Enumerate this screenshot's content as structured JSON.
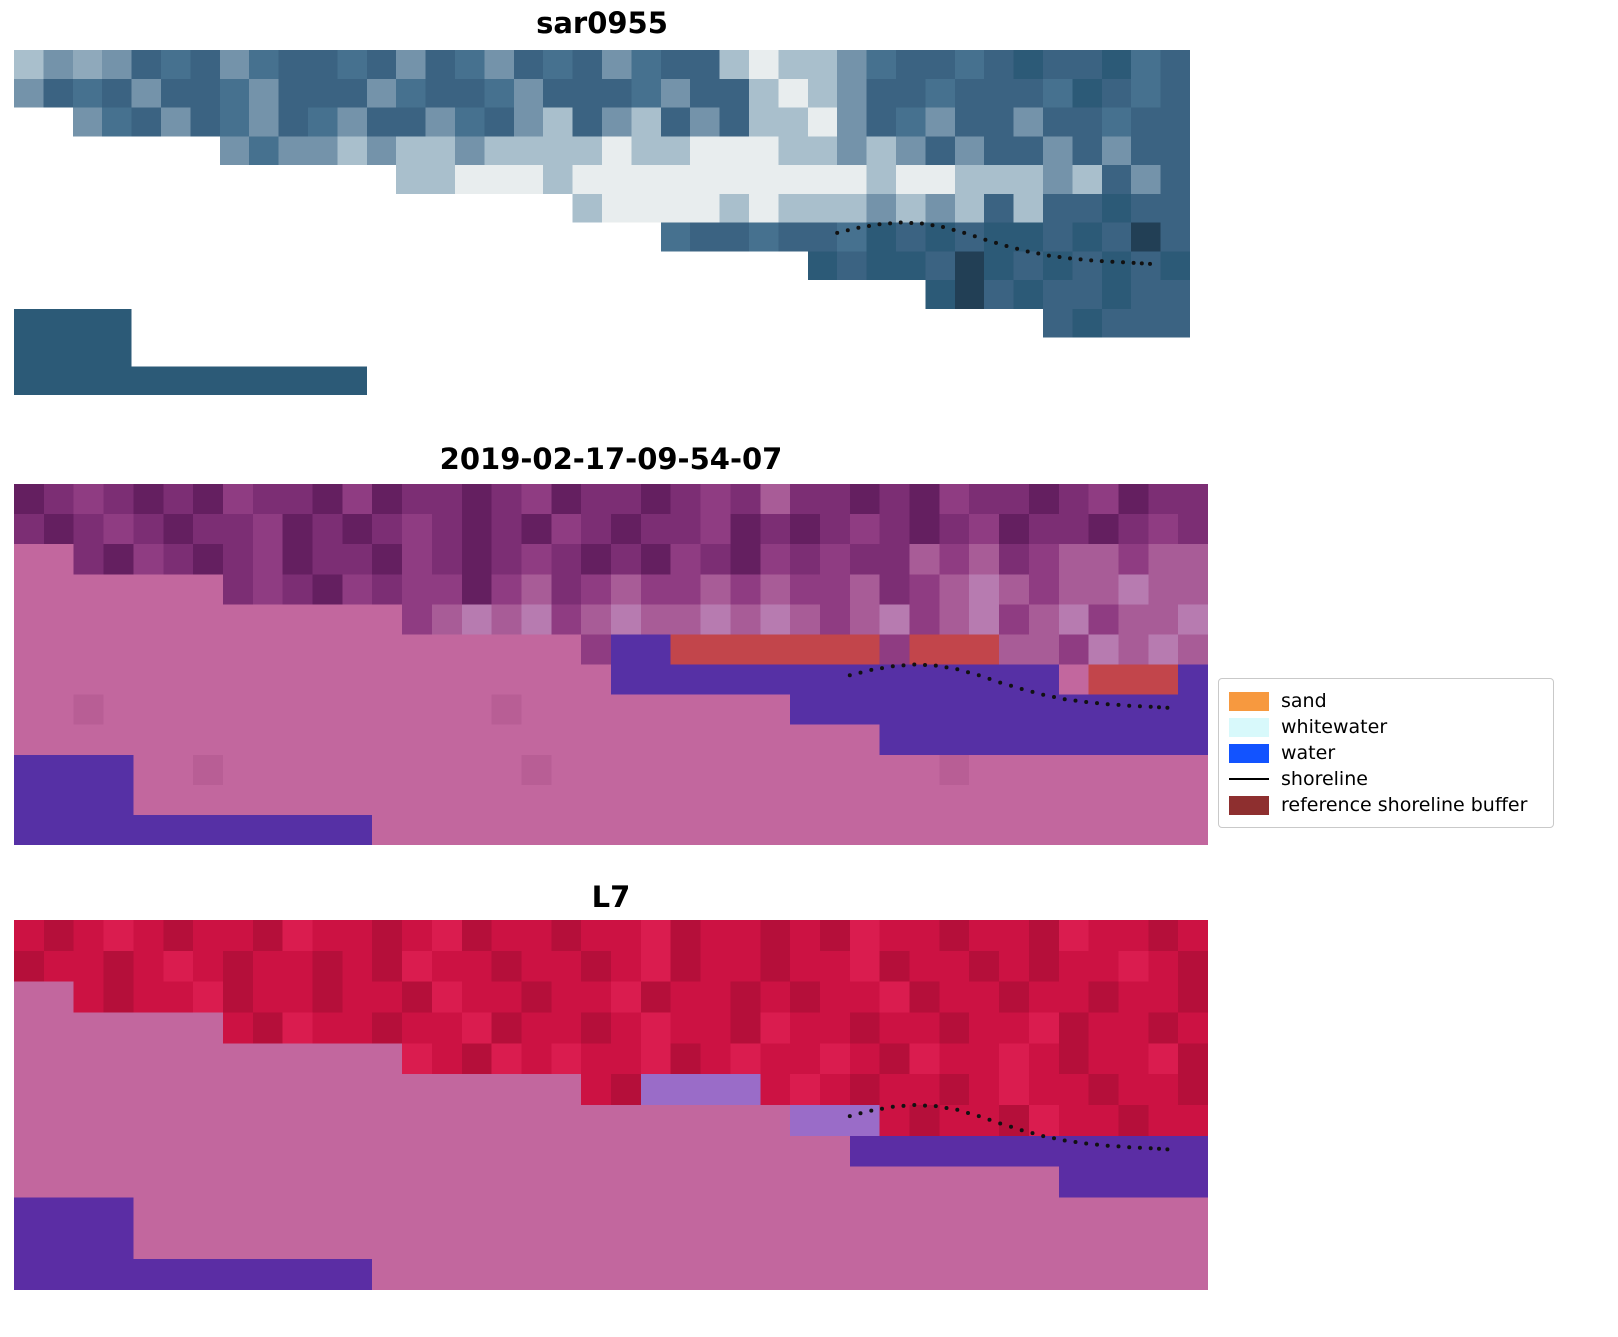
{
  "figure": {
    "background": "#ffffff"
  },
  "panels": [
    {
      "id": "sar0955",
      "title": "sar0955",
      "shoreline": true,
      "grid": {
        "cols": 40,
        "rows": 12,
        "palette": {
          ".": "#ffffff",
          "a": "#46718f",
          "b": "#3b6382",
          "c": "#7493aa",
          "d": "#a9bfcc",
          "e": "#e8edee",
          "f": "#2c5a77",
          "g": "#8fa9bb",
          "h": "#223f55"
        },
        "cells": [
          "dcgcbabcabbabcbacbabcabbdeddcabbabfbbfab",
          "cbabcbbacbbbcabbacbbbacbbdedcbbabbbafbab",
          "..cabcbacbacbbcabcdbcdbcbddecbacbbcbbabb",
          ".......caccdcddcddddeddeeeddcdcbcbbcbcbb",
          ".............ddeeedeeeeeeeeeedeedddcdbcb",
          "...................deeeededddcdcdbdbbfbb",
          "......................abbabbafbfbffbfbhb",
          "...........................fbffbhfbfbfbf",
          "...............................fhbfbbfbb",
          "ffff...............................bfbbb",
          "ffff....................................",
          "ffffffffffff............................"
        ]
      }
    },
    {
      "id": "classified",
      "title": "2019-02-17-09-54-07",
      "shoreline": true,
      "grid": {
        "cols": 40,
        "rows": 12,
        "palette": {
          ".": "#ffffff",
          "p": "#c2679e",
          "P": "#b85e95",
          "m": "#7c2e74",
          "n": "#641f60",
          "o": "#8f3c82",
          "q": "#a85c97",
          "v": "#b77bb0",
          "r": "#c2454b",
          "w": "#5630a5"
        },
        "cells": [
          "nmomnmnommnonmmnmonmmnmomqmmnmnommnmonmm",
          "mnmomnmmonmnmomnmnomnmmonmnmomnmonmmnmom",
          "ppmnomnmonmmnomnmomnmnomnomommqoqmoqqoqq",
          "pppppppmomnomoonoqmoqooqoqooqmoqvqoqqvqq",
          "pppppppppppppoqvqvoqvqqvqvqoqvoqvoqvoqqv",
          "pppppppppppppppppppowwrrrrrrrorrrqqovqvq",
          "ppppppppppppppppppppwwwwwwwwwwwwwwwprrrw",
          "ppPpppppppppppppPpppppppppwwwwwwwwwwwwww",
          "pppppppppppppppppppppppppppppwwwwwwwwwww",
          "wwwwppPppppppppppPpppppppppppppPpppppppp",
          "wwwwpppppppppppppppppppppppppppppppppppp",
          "wwwwwwwwwwwwpppppppppppppppppppppppppppp"
        ]
      }
    },
    {
      "id": "L7",
      "title": "L7",
      "shoreline": true,
      "grid": {
        "cols": 40,
        "rows": 12,
        "palette": {
          ".": "#ffffff",
          "p": "#c2679e",
          "P": "#b85e95",
          "R": "#cc1243",
          "S": "#b50f3a",
          "T": "#da1c4f",
          "u": "#9a6cc8",
          "w": "#5b2da4"
        },
        "cells": [
          "RSRTRSRRSTRRSRTSRRSRRTSRRSRSTRRSRRSTRRSR",
          "SRRSRTRSRRSRSTRRSRRSRTSRRSRRTSRRSRSRRTRS",
          "ppRSRRTSRRSRRSTRRSRRTSRRSRSRRTSRRSRRSRRS",
          "pppppppRSTRRSRRTSRRSRTRRSTRRSRRSRRTSRRSR",
          "pppppppppppppTRSTRTRRTSRTRRTRSTRRTRSRRTS",
          "pppppppppppppppppppRSuuuuRTRSRRSRTRRSRRS",
          "ppppppppppppppppppppppppppuuuRSRRSTRRSRR",
          "ppppppppppppppppppppppppppppwwwwwwwwwwww",
          "pppppppppppppppppppppppppppppppppppwwwww",
          "wwwwpppppppppppppppppppppppppppppppppppp",
          "wwwwpppppppppppppppppppppppppppppppppppp",
          "wwwwwwwwwwwwpppppppppppppppppppppppppppp"
        ]
      }
    }
  ],
  "shoreline_points": {
    "x": [
      0.7,
      0.718,
      0.736,
      0.754,
      0.772,
      0.79,
      0.808,
      0.826,
      0.844,
      0.862,
      0.88,
      0.898,
      0.916,
      0.934,
      0.952,
      0.966
    ],
    "y": [
      0.53,
      0.515,
      0.505,
      0.5,
      0.503,
      0.513,
      0.53,
      0.55,
      0.568,
      0.584,
      0.596,
      0.604,
      0.61,
      0.614,
      0.617,
      0.62
    ],
    "dot_color": "#111111"
  },
  "legend": {
    "items": [
      {
        "label": "sand",
        "type": "patch",
        "color": "#f7993f"
      },
      {
        "label": "whitewater",
        "type": "patch",
        "color": "#d8f9fb"
      },
      {
        "label": "water",
        "type": "patch",
        "color": "#1253ff"
      },
      {
        "label": "shoreline",
        "type": "line",
        "color": "#000000"
      },
      {
        "label": "reference shoreline buffer",
        "type": "patch",
        "color": "#8e2f2f"
      }
    ]
  }
}
